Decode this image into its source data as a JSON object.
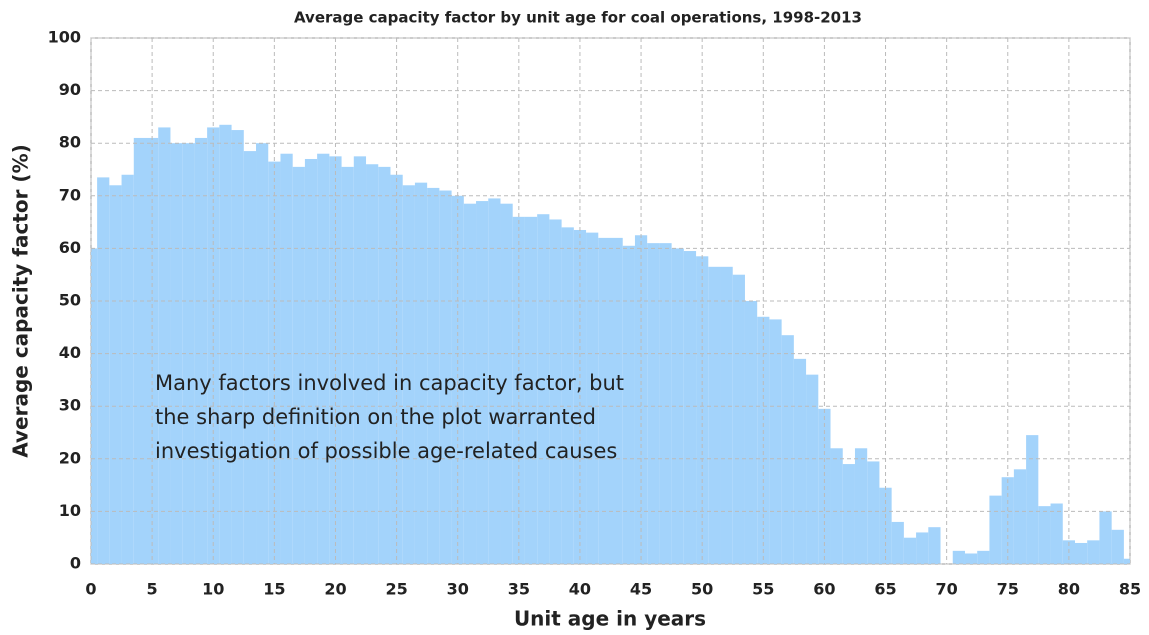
{
  "chart_data": {
    "type": "histogram",
    "title": "Average capacity factor by unit age for coal operations, 1998-2013",
    "x_label": "Unit age in years",
    "y_label": "Average capacity factor (%)",
    "annotation": [
      "Many factors involved in capacity factor, but",
      "the sharp definition on the plot warranted",
      "investigation of possible age-related causes"
    ],
    "bins": [
      -0.5,
      0.5,
      1.5,
      2.5,
      3.5,
      4.5,
      5.5,
      6.5,
      7.5,
      8.5,
      9.5,
      10.5,
      11.5,
      12.5,
      13.5,
      14.5,
      15.5,
      16.5,
      17.5,
      18.5,
      19.5,
      20.5,
      21.5,
      22.5,
      23.5,
      24.5,
      25.5,
      26.5,
      27.5,
      28.5,
      29.5,
      30.5,
      31.5,
      32.5,
      33.5,
      34.5,
      35.5,
      36.5,
      37.5,
      38.5,
      39.5,
      40.5,
      41.5,
      42.5,
      43.5,
      44.5,
      45.5,
      46.5,
      47.5,
      48.5,
      49.5,
      50.5,
      51.5,
      52.5,
      53.5,
      54.5,
      55.5,
      56.5,
      57.5,
      58.5,
      59.5,
      60.5,
      61.5,
      62.5,
      63.5,
      64.5,
      65.5,
      66.5,
      67.5,
      68.5,
      69.5,
      70.5,
      71.5,
      72.5,
      73.5,
      74.5,
      75.5,
      76.5,
      77.5,
      78.5,
      79.5,
      80.5,
      81.5,
      82.5,
      83.5,
      84.5,
      85.5
    ],
    "values": [
      60,
      73.5,
      72,
      74,
      81,
      81,
      83,
      80,
      80,
      81,
      83,
      83.5,
      82.5,
      78.5,
      80,
      76.5,
      78,
      75.5,
      77,
      78,
      77.5,
      75.5,
      77.5,
      76,
      75.5,
      74,
      72,
      72.5,
      71.5,
      71,
      70,
      68.5,
      69,
      69.5,
      68.5,
      66,
      66,
      66.5,
      65.5,
      64,
      63.5,
      63,
      62,
      62,
      60.5,
      62.5,
      61,
      61,
      60,
      59.5,
      58.5,
      56.5,
      56.5,
      55,
      50,
      47,
      46.5,
      43.5,
      39,
      36,
      29.5,
      22,
      19,
      22,
      19.5,
      14.5,
      8,
      5,
      6,
      7,
      0,
      2.5,
      2,
      2.5,
      13,
      16.5,
      18,
      24.5,
      11,
      11.5,
      4.5,
      4,
      4.5,
      10,
      6.5,
      1
    ],
    "color": "#a3d3fb",
    "xlim": [
      0,
      85
    ],
    "ylim": [
      0,
      100
    ],
    "xticks": [
      0,
      5,
      10,
      15,
      20,
      25,
      30,
      35,
      40,
      45,
      50,
      55,
      60,
      65,
      70,
      75,
      80,
      85
    ],
    "yticks": [
      0,
      10,
      20,
      30,
      40,
      50,
      60,
      70,
      80,
      90,
      100
    ],
    "grid": true
  }
}
